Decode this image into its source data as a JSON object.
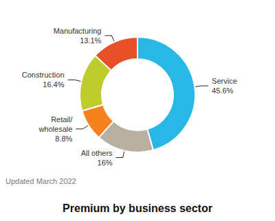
{
  "chart_data": {
    "type": "pie",
    "title": "Premium by business sector",
    "annotations": [
      "Updated March 2022"
    ],
    "categories": [
      "Service",
      "All others",
      "Retail/\nwholesale",
      "Construction",
      "Manufacturing"
    ],
    "values": [
      45.6,
      16.1,
      8.8,
      16.4,
      13.1
    ],
    "value_labels": [
      "45.6%",
      "16%",
      "8.8%",
      "16.4%",
      "13.1%"
    ],
    "colors": [
      "#29B8E5",
      "#B8B0A0",
      "#F5821E",
      "#BFCC2E",
      "#E8502A"
    ],
    "data_labels": true
  }
}
